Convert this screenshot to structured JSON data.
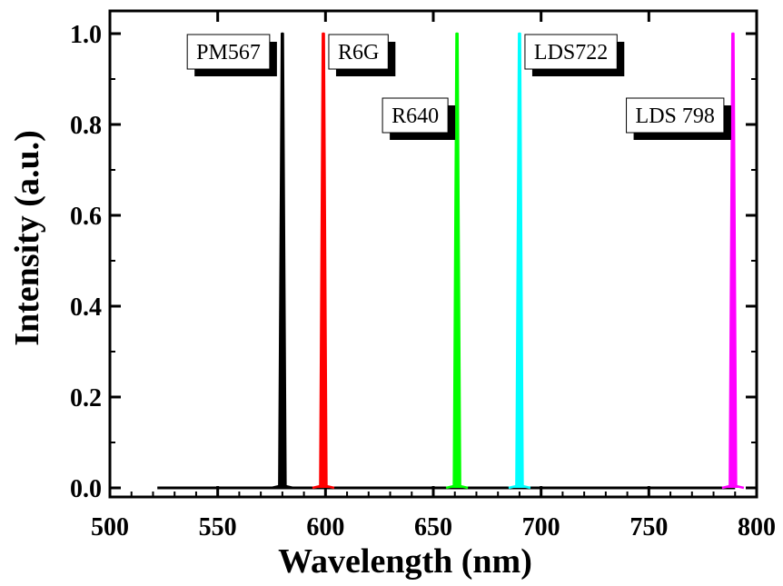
{
  "chart_data": {
    "type": "line",
    "xlabel": "Wavelength (nm)",
    "ylabel": "Intensity (a.u.)",
    "xlim": [
      500,
      800
    ],
    "ylim": [
      -0.02,
      1.05
    ],
    "xticks": [
      "500",
      "550",
      "600",
      "650",
      "700",
      "750",
      "800"
    ],
    "yticks": [
      "0.0",
      "0.2",
      "0.4",
      "0.6",
      "0.8",
      "1.0"
    ],
    "grid": false,
    "legend": "none",
    "baseline_range": [
      522,
      790
    ],
    "series": [
      {
        "name": "PM567",
        "peak_x": 580,
        "peak_y": 1.0,
        "color": "#000000",
        "label_y": 0.96
      },
      {
        "name": "R6G",
        "peak_x": 599,
        "peak_y": 1.0,
        "color": "#ff0000",
        "label_y": 0.96
      },
      {
        "name": "R640",
        "peak_x": 661,
        "peak_y": 1.0,
        "color": "#00ff00",
        "label_y": 0.82
      },
      {
        "name": "LDS722",
        "peak_x": 690,
        "peak_y": 1.0,
        "color": "#00ffff",
        "label_y": 0.96
      },
      {
        "name": "LDS 798",
        "peak_x": 789,
        "peak_y": 1.0,
        "color": "#ff00ff",
        "label_y": 0.82
      }
    ]
  }
}
